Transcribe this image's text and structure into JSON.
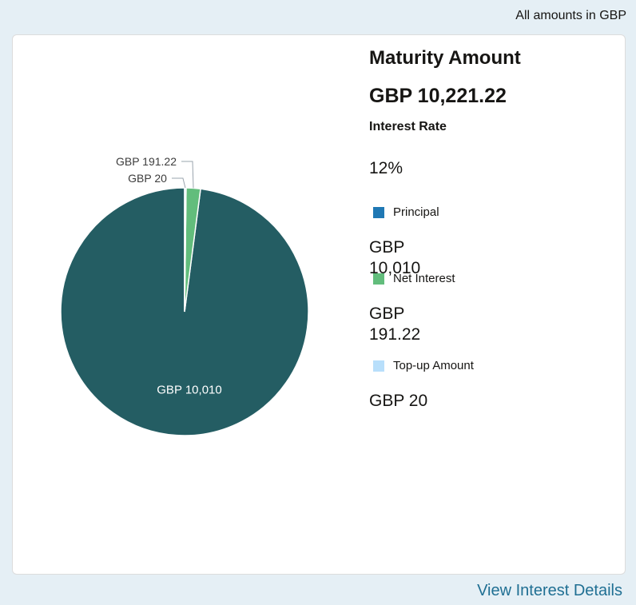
{
  "header": {
    "amounts_note": "All amounts in GBP"
  },
  "summary": {
    "title": "Maturity Amount",
    "maturity_value": "GBP 10,221.22",
    "interest_rate_label": "Interest Rate",
    "interest_rate_value": "12%"
  },
  "legend": [
    {
      "label": "Principal",
      "value": "GBP 10,010",
      "color": "#1f78b4"
    },
    {
      "label": "Net Interest",
      "value": "GBP 191.22",
      "color": "#62bd7c"
    },
    {
      "label": "Top-up Amount",
      "value": "GBP 20",
      "color": "#b8dffb"
    }
  ],
  "footer": {
    "link_label": "View Interest Details"
  },
  "chart_data": {
    "type": "pie",
    "slices": [
      {
        "value": 10010,
        "label": "GBP 10,010",
        "color": "#245d63"
      },
      {
        "value": 191.22,
        "label": "GBP 191.22",
        "color": "#62bd7c"
      },
      {
        "value": 20,
        "label": "GBP 20",
        "color": "#b8dffb"
      }
    ]
  }
}
